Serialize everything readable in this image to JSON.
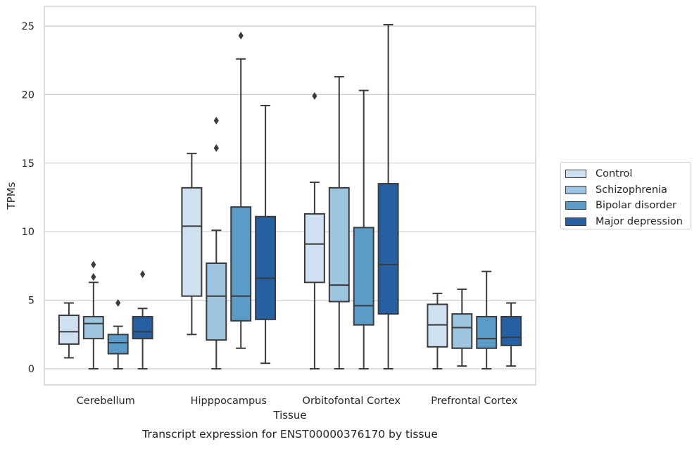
{
  "chart_data": {
    "type": "box",
    "title": "Transcript expression for ENST00000376170 by tissue",
    "xlabel": "Tissue",
    "ylabel": "TPMs",
    "categories": [
      "Cerebellum",
      "Hipppocampus",
      "Orbitofontal Cortex",
      "Prefrontal Cortex"
    ],
    "ylim": [
      -1.2,
      26
    ],
    "yticks": [
      0,
      5,
      10,
      15,
      20,
      25
    ],
    "grid": true,
    "legend_position": "right",
    "series": [
      {
        "name": "Control",
        "color": "#cfe0f1",
        "boxes": [
          {
            "whislo": 0.8,
            "q1": 1.8,
            "med": 2.7,
            "q3": 3.9,
            "whishi": 4.8,
            "fliers": []
          },
          {
            "whislo": 2.5,
            "q1": 5.3,
            "med": 10.4,
            "q3": 13.2,
            "whishi": 15.7,
            "fliers": []
          },
          {
            "whislo": 0.0,
            "q1": 6.3,
            "med": 9.1,
            "q3": 11.3,
            "whishi": 13.6,
            "fliers": [
              19.9
            ]
          },
          {
            "whislo": 0.0,
            "q1": 1.6,
            "med": 3.2,
            "q3": 4.7,
            "whishi": 5.5,
            "fliers": []
          }
        ]
      },
      {
        "name": "Schizophrenia",
        "color": "#9dc5df",
        "boxes": [
          {
            "whislo": 0.0,
            "q1": 2.2,
            "med": 3.3,
            "q3": 3.8,
            "whishi": 6.3,
            "fliers": [
              6.7,
              7.6
            ]
          },
          {
            "whislo": 0.0,
            "q1": 2.1,
            "med": 5.3,
            "q3": 7.7,
            "whishi": 10.1,
            "fliers": [
              16.1,
              18.1
            ]
          },
          {
            "whislo": 0.0,
            "q1": 4.9,
            "med": 6.1,
            "q3": 13.2,
            "whishi": 21.3,
            "fliers": []
          },
          {
            "whislo": 0.2,
            "q1": 1.5,
            "med": 3.0,
            "q3": 4.0,
            "whishi": 5.8,
            "fliers": []
          }
        ]
      },
      {
        "name": "Bipolar disorder",
        "color": "#5b9bc8",
        "boxes": [
          {
            "whislo": 0.0,
            "q1": 1.1,
            "med": 1.9,
            "q3": 2.5,
            "whishi": 3.1,
            "fliers": [
              4.8
            ]
          },
          {
            "whislo": 1.5,
            "q1": 3.5,
            "med": 5.3,
            "q3": 11.8,
            "whishi": 22.6,
            "fliers": [
              24.3
            ]
          },
          {
            "whislo": 0.0,
            "q1": 3.2,
            "med": 4.6,
            "q3": 10.3,
            "whishi": 20.3,
            "fliers": []
          },
          {
            "whislo": 0.0,
            "q1": 1.5,
            "med": 2.2,
            "q3": 3.8,
            "whishi": 7.1,
            "fliers": []
          }
        ]
      },
      {
        "name": "Major depression",
        "color": "#2660a2",
        "boxes": [
          {
            "whislo": 0.0,
            "q1": 2.2,
            "med": 2.7,
            "q3": 3.8,
            "whishi": 4.4,
            "fliers": [
              6.9
            ]
          },
          {
            "whislo": 0.4,
            "q1": 3.6,
            "med": 6.6,
            "q3": 11.1,
            "whishi": 19.2,
            "fliers": []
          },
          {
            "whislo": 0.0,
            "q1": 4.0,
            "med": 7.6,
            "q3": 13.5,
            "whishi": 25.1,
            "fliers": []
          },
          {
            "whislo": 0.2,
            "q1": 1.7,
            "med": 2.3,
            "q3": 3.8,
            "whishi": 4.8,
            "fliers": []
          }
        ]
      }
    ]
  }
}
